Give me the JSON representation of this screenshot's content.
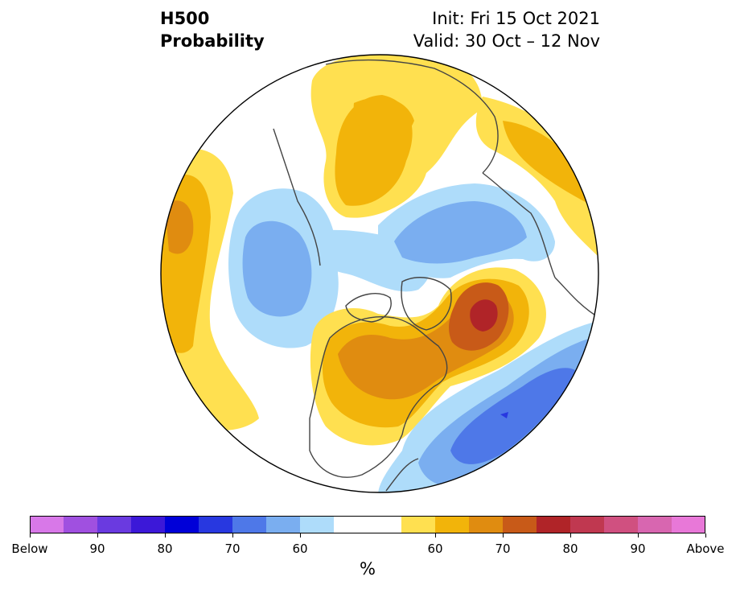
{
  "title": {
    "line1": "H500",
    "line2": "Probability"
  },
  "subtitle": {
    "init": "Init: Fri 15 Oct 2021",
    "valid": "Valid: 30 Oct – 12 Nov"
  },
  "colorbar": {
    "unit": "%",
    "colors": [
      "#d878e8",
      "#a050e0",
      "#6a3ae0",
      "#3c18d8",
      "#0000d8",
      "#2838e0",
      "#4e78e8",
      "#7aaef0",
      "#aedcfa",
      "#ffffff",
      "#ffffff",
      "#ffe050",
      "#f2b40a",
      "#e08c10",
      "#c85a18",
      "#b02428",
      "#c03850",
      "#d05080",
      "#d866b0",
      "#e878d8"
    ],
    "ticks": [
      {
        "label": "Below",
        "index": 0
      },
      {
        "label": "90",
        "index": 2
      },
      {
        "label": "80",
        "index": 4
      },
      {
        "label": "70",
        "index": 6
      },
      {
        "label": "60",
        "index": 8
      },
      {
        "label": "60",
        "index": 12
      },
      {
        "label": "70",
        "index": 14
      },
      {
        "label": "80",
        "index": 16
      },
      {
        "label": "90",
        "index": 18
      },
      {
        "label": "Above",
        "index": 20
      }
    ]
  },
  "anomalies": [
    {
      "region": "north-pacific-west",
      "category": "above",
      "level": "55-65"
    },
    {
      "region": "siberia",
      "category": "above",
      "level": "60-70"
    },
    {
      "region": "scandinavia-north-europe",
      "category": "above",
      "level": "55-65"
    },
    {
      "region": "arctic-europe",
      "category": "below",
      "level": "55-65"
    },
    {
      "region": "east-asia-pacific",
      "category": "below",
      "level": "55-65"
    },
    {
      "region": "greenland-sea",
      "category": "above",
      "level": "75-80"
    },
    {
      "region": "canada",
      "category": "above",
      "level": "60-70"
    },
    {
      "region": "north-atlantic",
      "category": "below",
      "level": "65-80"
    }
  ]
}
